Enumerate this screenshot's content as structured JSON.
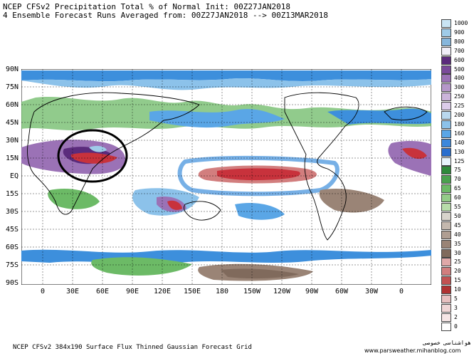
{
  "title_line1": "NCEP CFSv2 Precipitation Total % of Normal Init: 00Z27JAN2018",
  "title_line2": "4 Ensemble Forecast Runs Averaged from: 00Z27JAN2018 --> 00Z13MAR2018",
  "lat_labels": [
    "90N",
    "75N",
    "60N",
    "45N",
    "30N",
    "15N",
    "EQ",
    "15S",
    "30S",
    "45S",
    "60S",
    "75S",
    "90S"
  ],
  "lon_labels": [
    "0",
    "30E",
    "60E",
    "90E",
    "120E",
    "150E",
    "180",
    "150W",
    "120W",
    "90W",
    "60W",
    "30W",
    "0"
  ],
  "colorbar": {
    "labels": [
      "1000",
      "900",
      "800",
      "700",
      "600",
      "500",
      "400",
      "300",
      "250",
      "225",
      "200",
      "180",
      "160",
      "140",
      "130",
      "125",
      "75",
      "70",
      "65",
      "60",
      "55",
      "50",
      "45",
      "40",
      "35",
      "30",
      "25",
      "20",
      "15",
      "10",
      "5",
      "3",
      "2",
      "0"
    ],
    "colors": [
      "#c9e4f3",
      "#9fcbe8",
      "#86b6dc",
      "#f0eef8",
      "#5b2b7c",
      "#7a4a9a",
      "#9b72b6",
      "#b597c9",
      "#cbb4da",
      "#dcccea",
      "#b9d8ee",
      "#8cc2ea",
      "#5aa6e6",
      "#3d88dc",
      "#2a6fce",
      "#e8f4fb",
      "#2e8a3a",
      "#4aa24e",
      "#6cba66",
      "#94cc88",
      "#b8dcaa",
      "#d8d4cc",
      "#c4b8ae",
      "#b09e92",
      "#9a8476",
      "#806a5c",
      "#e0a8a8",
      "#d27e7e",
      "#c25252",
      "#b03232",
      "#e8c0c0",
      "#f0d6d6",
      "#f6e6e6",
      "#ffffff"
    ]
  },
  "footer": "NCEP CFSv2 384x190 Surface Flux Thinned Gaussian Forecast Grid",
  "credit_fa": "هواشناسی خصوصی",
  "credit_url": "www.parsweather.mihanblog.com",
  "colors": {
    "ocean_blue": "#3d8fdc",
    "land_green": "#4aa24e",
    "wet_red": "#c8323c",
    "purple": "#8a62b0",
    "brown": "#9a7a62"
  }
}
